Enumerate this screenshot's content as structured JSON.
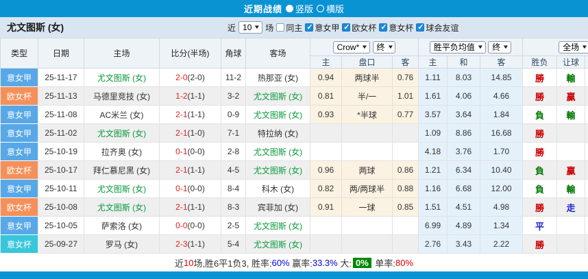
{
  "titlebar": {
    "title": "近期战绩",
    "options": [
      {
        "label": "竖版",
        "selected": true
      },
      {
        "label": "横版",
        "selected": false
      }
    ]
  },
  "filterbar": {
    "team": "尤文图斯 (女)",
    "recent_prefix": "近",
    "match_count": "10",
    "recent_suffix": "场",
    "checkboxes": [
      {
        "label": "同主",
        "checked": false
      },
      {
        "label": "意女甲",
        "checked": true
      },
      {
        "label": "欧女杯",
        "checked": true
      },
      {
        "label": "意女杯",
        "checked": true
      },
      {
        "label": "球会友谊",
        "checked": true
      }
    ]
  },
  "table": {
    "left_headers": [
      "类型",
      "日期",
      "主场",
      "比分(半场)",
      "角球",
      "客场"
    ],
    "selects": {
      "asian_bookmaker": "Crow*",
      "asian_stage": "终",
      "europe_type": "胜平负均值",
      "europe_stage": "终",
      "scope": "全场"
    },
    "sub_headers": [
      "主",
      "盘口",
      "客",
      "主",
      "和",
      "客",
      "胜负",
      "让球"
    ],
    "league_colors": {
      "意女甲": "#58a8e8",
      "欧女杯": "#f5905a",
      "意女杯": "#38c6da"
    },
    "focus_team": "尤文图斯 (女)",
    "rows": [
      {
        "league": "意女甲",
        "date": "25-11-17",
        "home": "尤文图斯 (女)",
        "score": "2-0",
        "half": "(2-0)",
        "corner": "11-2",
        "away": "热那亚 (女)",
        "ah_home": "0.94",
        "handicap": "两球半",
        "ah_away": "0.76",
        "eu_home": "1.11",
        "eu_draw": "8.03",
        "eu_away": "14.85",
        "result": "勝",
        "handicap_result": "輸"
      },
      {
        "league": "欧女杯",
        "date": "25-11-13",
        "home": "马德里竞技 (女)",
        "score": "1-2",
        "half": "(1-1)",
        "corner": "3-2",
        "away": "尤文图斯 (女)",
        "ah_home": "0.81",
        "handicap": "半/一",
        "ah_away": "1.01",
        "eu_home": "1.61",
        "eu_draw": "4.06",
        "eu_away": "4.66",
        "result": "勝",
        "handicap_result": "贏"
      },
      {
        "league": "意女甲",
        "date": "25-11-08",
        "home": "AC米兰 (女)",
        "score": "2-1",
        "half": "(1-1)",
        "corner": "0-9",
        "away": "尤文图斯 (女)",
        "ah_home": "0.93",
        "handicap": "*半球",
        "ah_away": "0.77",
        "eu_home": "3.57",
        "eu_draw": "3.64",
        "eu_away": "1.84",
        "result": "負",
        "handicap_result": "輸"
      },
      {
        "league": "意女甲",
        "date": "25-11-02",
        "home": "尤文图斯 (女)",
        "score": "2-1",
        "half": "(1-0)",
        "corner": "7-1",
        "away": "特拉纳 (女)",
        "ah_home": "",
        "handicap": "",
        "ah_away": "",
        "eu_home": "1.09",
        "eu_draw": "8.86",
        "eu_away": "16.68",
        "result": "勝",
        "handicap_result": ""
      },
      {
        "league": "意女甲",
        "date": "25-10-19",
        "home": "拉齐奥 (女)",
        "score": "0-1",
        "half": "(0-0)",
        "corner": "2-8",
        "away": "尤文图斯 (女)",
        "ah_home": "",
        "handicap": "",
        "ah_away": "",
        "eu_home": "4.18",
        "eu_draw": "3.76",
        "eu_away": "1.70",
        "result": "勝",
        "handicap_result": ""
      },
      {
        "league": "欧女杯",
        "date": "25-10-17",
        "home": "拜仁慕尼黑 (女)",
        "score": "2-1",
        "half": "(1-1)",
        "corner": "4-5",
        "away": "尤文图斯 (女)",
        "ah_home": "0.96",
        "handicap": "两球",
        "ah_away": "0.86",
        "eu_home": "1.21",
        "eu_draw": "6.34",
        "eu_away": "10.40",
        "result": "負",
        "handicap_result": "贏"
      },
      {
        "league": "意女甲",
        "date": "25-10-11",
        "home": "尤文图斯 (女)",
        "score": "0-1",
        "half": "(0-0)",
        "corner": "8-4",
        "away": "科木 (女)",
        "ah_home": "0.82",
        "handicap": "两/两球半",
        "ah_away": "0.88",
        "eu_home": "1.16",
        "eu_draw": "6.68",
        "eu_away": "12.00",
        "result": "負",
        "handicap_result": "輸"
      },
      {
        "league": "欧女杯",
        "date": "25-10-08",
        "home": "尤文图斯 (女)",
        "score": "2-1",
        "half": "(1-1)",
        "corner": "8-3",
        "away": "宾菲加 (女)",
        "ah_home": "0.91",
        "handicap": "一球",
        "ah_away": "0.85",
        "eu_home": "1.51",
        "eu_draw": "4.51",
        "eu_away": "4.98",
        "result": "勝",
        "handicap_result": "走"
      },
      {
        "league": "意女甲",
        "date": "25-10-05",
        "home": "萨索洛 (女)",
        "score": "0-0",
        "half": "(0-0)",
        "corner": "2-5",
        "away": "尤文图斯 (女)",
        "ah_home": "",
        "handicap": "",
        "ah_away": "",
        "eu_home": "6.99",
        "eu_draw": "4.89",
        "eu_away": "1.34",
        "result": "平",
        "handicap_result": ""
      },
      {
        "league": "意女杯",
        "date": "25-09-27",
        "home": "罗马 (女)",
        "score": "2-3",
        "half": "(1-1)",
        "corner": "5-4",
        "away": "尤文图斯 (女)",
        "ah_home": "",
        "handicap": "",
        "ah_away": "",
        "eu_home": "2.76",
        "eu_draw": "3.43",
        "eu_away": "2.22",
        "result": "勝",
        "handicap_result": ""
      }
    ]
  },
  "summary": {
    "segments": [
      {
        "text": "近",
        "color": "#333333"
      },
      {
        "text": "10",
        "color": "#dd0000"
      },
      {
        "text": "场,胜6平1负3, ",
        "color": "#333333"
      },
      {
        "text": "胜率:",
        "color": "#333333"
      },
      {
        "text": "60%",
        "color": "#0000dd"
      },
      {
        "text": " 赢率:",
        "color": "#333333"
      },
      {
        "text": "33.3%",
        "color": "#0000dd"
      },
      {
        "text": " 大:",
        "color": "#333333"
      },
      {
        "text": "0%",
        "color": "#ffffff",
        "bg": "#008800"
      },
      {
        "text": " 单率:",
        "color": "#333333"
      },
      {
        "text": "80%",
        "color": "#dd0000"
      }
    ]
  },
  "colors": {
    "accent": "#0993d3",
    "team_green": "#0a9a3c",
    "score_red": "#dd2222",
    "result_map": {
      "勝": "#cc0000",
      "負": "#007700",
      "平": "#2222cc",
      "贏": "#cc0000",
      "輸": "#007700",
      "走": "#2222cc"
    }
  }
}
